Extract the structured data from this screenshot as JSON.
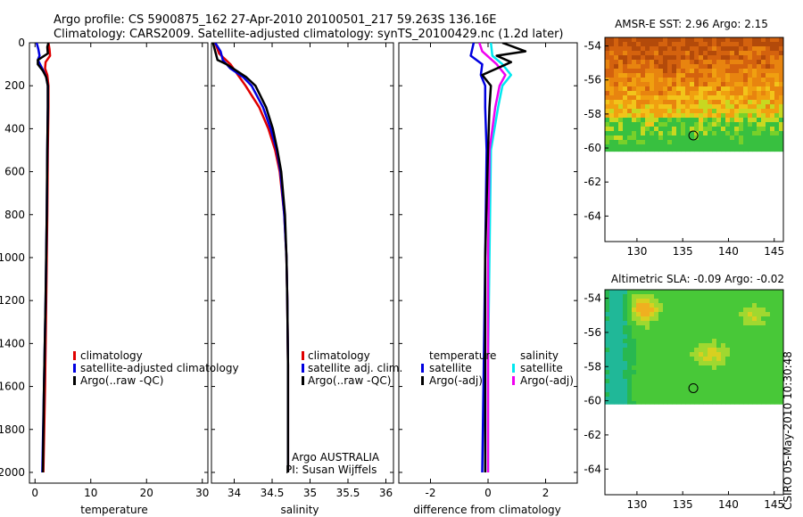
{
  "figure": {
    "title_line1": "Argo profile: CS 5900875_162 27-Apr-2010 20100501_217 59.263S 136.16E",
    "title_line2": "Climatology: CARS2009. Satellite-adjusted climatology: synTS_20100429.nc (1.2d later)",
    "stamp": "CSIRO 05-May-2010 10:30:48"
  },
  "colors": {
    "red": "#e00000",
    "blue": "#0000e0",
    "black": "#000000",
    "cyan": "#00e8f0",
    "magenta": "#f000f0"
  },
  "chart_data": [
    {
      "type": "line",
      "id": "temperature",
      "xlabel": "temperature",
      "xlim": [
        -1,
        31
      ],
      "ylim": [
        2050,
        0
      ],
      "x_ticks": [
        0,
        10,
        20,
        30
      ],
      "y_ticks": [
        0,
        200,
        400,
        600,
        800,
        1000,
        1200,
        1400,
        1600,
        1800,
        2000
      ],
      "legend": [
        "climatology",
        "satellite-adjusted climatology",
        "Argo(..raw -QC)"
      ],
      "series": [
        {
          "name": "climatology",
          "color": "red",
          "depth": [
            0,
            30,
            60,
            90,
            120,
            150,
            200,
            300,
            500,
            800,
            1200,
            1600,
            2000
          ],
          "values": [
            2.4,
            2.6,
            2.7,
            1.9,
            1.8,
            2.2,
            2.4,
            2.4,
            2.3,
            2.2,
            2.0,
            1.8,
            1.5
          ]
        },
        {
          "name": "satellite-adjusted climatology",
          "color": "blue",
          "depth": [
            0,
            30,
            60,
            80,
            100,
            130,
            160,
            200,
            300,
            500,
            800,
            1200,
            1600,
            2000
          ],
          "values": [
            0.3,
            0.6,
            0.8,
            0.5,
            0.9,
            1.5,
            2.0,
            2.3,
            2.3,
            2.2,
            2.1,
            1.9,
            1.6,
            1.3
          ]
        },
        {
          "name": "Argo(..raw -QC)",
          "color": "black",
          "depth": [
            0,
            20,
            50,
            80,
            100,
            130,
            160,
            200,
            300,
            500,
            800,
            1200,
            1600,
            2000
          ],
          "values": [
            2.4,
            2.2,
            2.3,
            0.5,
            0.5,
            1.4,
            2.0,
            2.3,
            2.3,
            2.2,
            2.1,
            1.9,
            1.6,
            1.4
          ]
        }
      ]
    },
    {
      "type": "line",
      "id": "salinity",
      "xlabel": "salinity",
      "xlim": [
        33.7,
        36.1
      ],
      "ylim": [
        2050,
        0
      ],
      "x_ticks": [
        34,
        34.5,
        35,
        35.5,
        36
      ],
      "legend": [
        "climatology",
        "satellite adj. clim.",
        "Argo(..raw -QC)"
      ],
      "series": [
        {
          "name": "climatology",
          "color": "red",
          "depth": [
            0,
            50,
            100,
            150,
            200,
            300,
            400,
            500,
            600,
            800,
            1000,
            1200,
            1500,
            2000
          ],
          "values": [
            33.75,
            33.8,
            33.95,
            34.05,
            34.15,
            34.33,
            34.45,
            34.54,
            34.6,
            34.66,
            34.69,
            34.7,
            34.71,
            34.71
          ]
        },
        {
          "name": "satellite adj. clim.",
          "color": "blue",
          "depth": [
            0,
            40,
            80,
            120,
            160,
            200,
            300,
            400,
            500,
            600,
            800,
            1000,
            1200,
            1500,
            2000
          ],
          "values": [
            33.75,
            33.82,
            33.85,
            33.95,
            34.12,
            34.23,
            34.38,
            34.48,
            34.56,
            34.61,
            34.66,
            34.69,
            34.7,
            34.71,
            34.71
          ]
        },
        {
          "name": "Argo(..raw -QC)",
          "color": "black",
          "depth": [
            0,
            40,
            80,
            100,
            130,
            160,
            200,
            300,
            400,
            500,
            600,
            800,
            1000,
            1200,
            1500,
            2000
          ],
          "values": [
            33.72,
            33.75,
            33.78,
            33.9,
            34.03,
            34.16,
            34.28,
            34.42,
            34.51,
            34.57,
            34.62,
            34.67,
            34.69,
            34.7,
            34.71,
            34.71
          ]
        }
      ],
      "annotation_line1": "Argo AUSTRALIA",
      "annotation_line2": "PI: Susan Wijffels"
    },
    {
      "type": "line",
      "id": "difference",
      "xlabel": "difference from climatology",
      "xlim": [
        -3.1,
        3.1
      ],
      "ylim": [
        2050,
        0
      ],
      "x_ticks": [
        -2,
        0,
        2
      ],
      "legend_temperature_title": "temperature",
      "legend_salinity_title": "salinity",
      "legend_temperature": [
        "satellite",
        "Argo(-adj)"
      ],
      "legend_salinity": [
        "satellite",
        "Argo(-adj)"
      ],
      "series": [
        {
          "name": "temperature satellite",
          "color": "blue",
          "depth": [
            0,
            60,
            100,
            150,
            200,
            300,
            500,
            1000,
            1500,
            2000
          ],
          "values": [
            -0.5,
            -0.6,
            -0.2,
            -0.25,
            -0.1,
            -0.1,
            -0.05,
            -0.1,
            -0.15,
            -0.2
          ]
        },
        {
          "name": "salinity satellite",
          "color": "cyan",
          "depth": [
            0,
            60,
            100,
            150,
            200,
            300,
            500,
            1000,
            1500,
            2000
          ],
          "values": [
            0.1,
            0.15,
            0.5,
            0.8,
            0.5,
            0.35,
            0.1,
            0.05,
            0.0,
            0.0
          ]
        },
        {
          "name": "salinity Argo(-adj)",
          "color": "magenta",
          "depth": [
            0,
            40,
            100,
            150,
            200,
            300,
            500,
            1000,
            1500,
            2000
          ],
          "values": [
            -0.3,
            -0.2,
            0.3,
            0.6,
            0.4,
            0.25,
            0.05,
            0.0,
            0.0,
            0.0
          ]
        },
        {
          "name": "temperature Argo(-adj)",
          "color": "black",
          "depth": [
            0,
            40,
            60,
            90,
            150,
            200,
            300,
            500,
            1000,
            1500,
            2000
          ],
          "values": [
            0.5,
            1.3,
            0.3,
            0.8,
            -0.2,
            0.1,
            0.05,
            0.0,
            -0.1,
            -0.1,
            -0.1
          ]
        }
      ]
    },
    {
      "type": "heatmap",
      "id": "sst_map",
      "title": "AMSR-E SST: 2.96 Argo: 2.15",
      "xlim": [
        126.5,
        146
      ],
      "ylim": [
        -65.5,
        -53.5
      ],
      "x_ticks": [
        130,
        135,
        140,
        145
      ],
      "y_ticks": [
        -54,
        -56,
        -58,
        -60,
        -62,
        -64
      ],
      "argo_position": {
        "lon": 136.16,
        "lat": -59.263
      },
      "data_lat_range": [
        -60.2,
        -53.5
      ]
    },
    {
      "type": "heatmap",
      "id": "sla_map",
      "title": "Altimetric SLA: -0.09 Argo: -0.02",
      "xlim": [
        126.5,
        146
      ],
      "ylim": [
        -65.5,
        -53.5
      ],
      "x_ticks": [
        130,
        135,
        140,
        145
      ],
      "y_ticks": [
        -54,
        -56,
        -58,
        -60,
        -62,
        -64
      ],
      "argo_position": {
        "lon": 136.16,
        "lat": -59.263
      },
      "data_lat_range": [
        -60.2,
        -53.5
      ]
    }
  ]
}
